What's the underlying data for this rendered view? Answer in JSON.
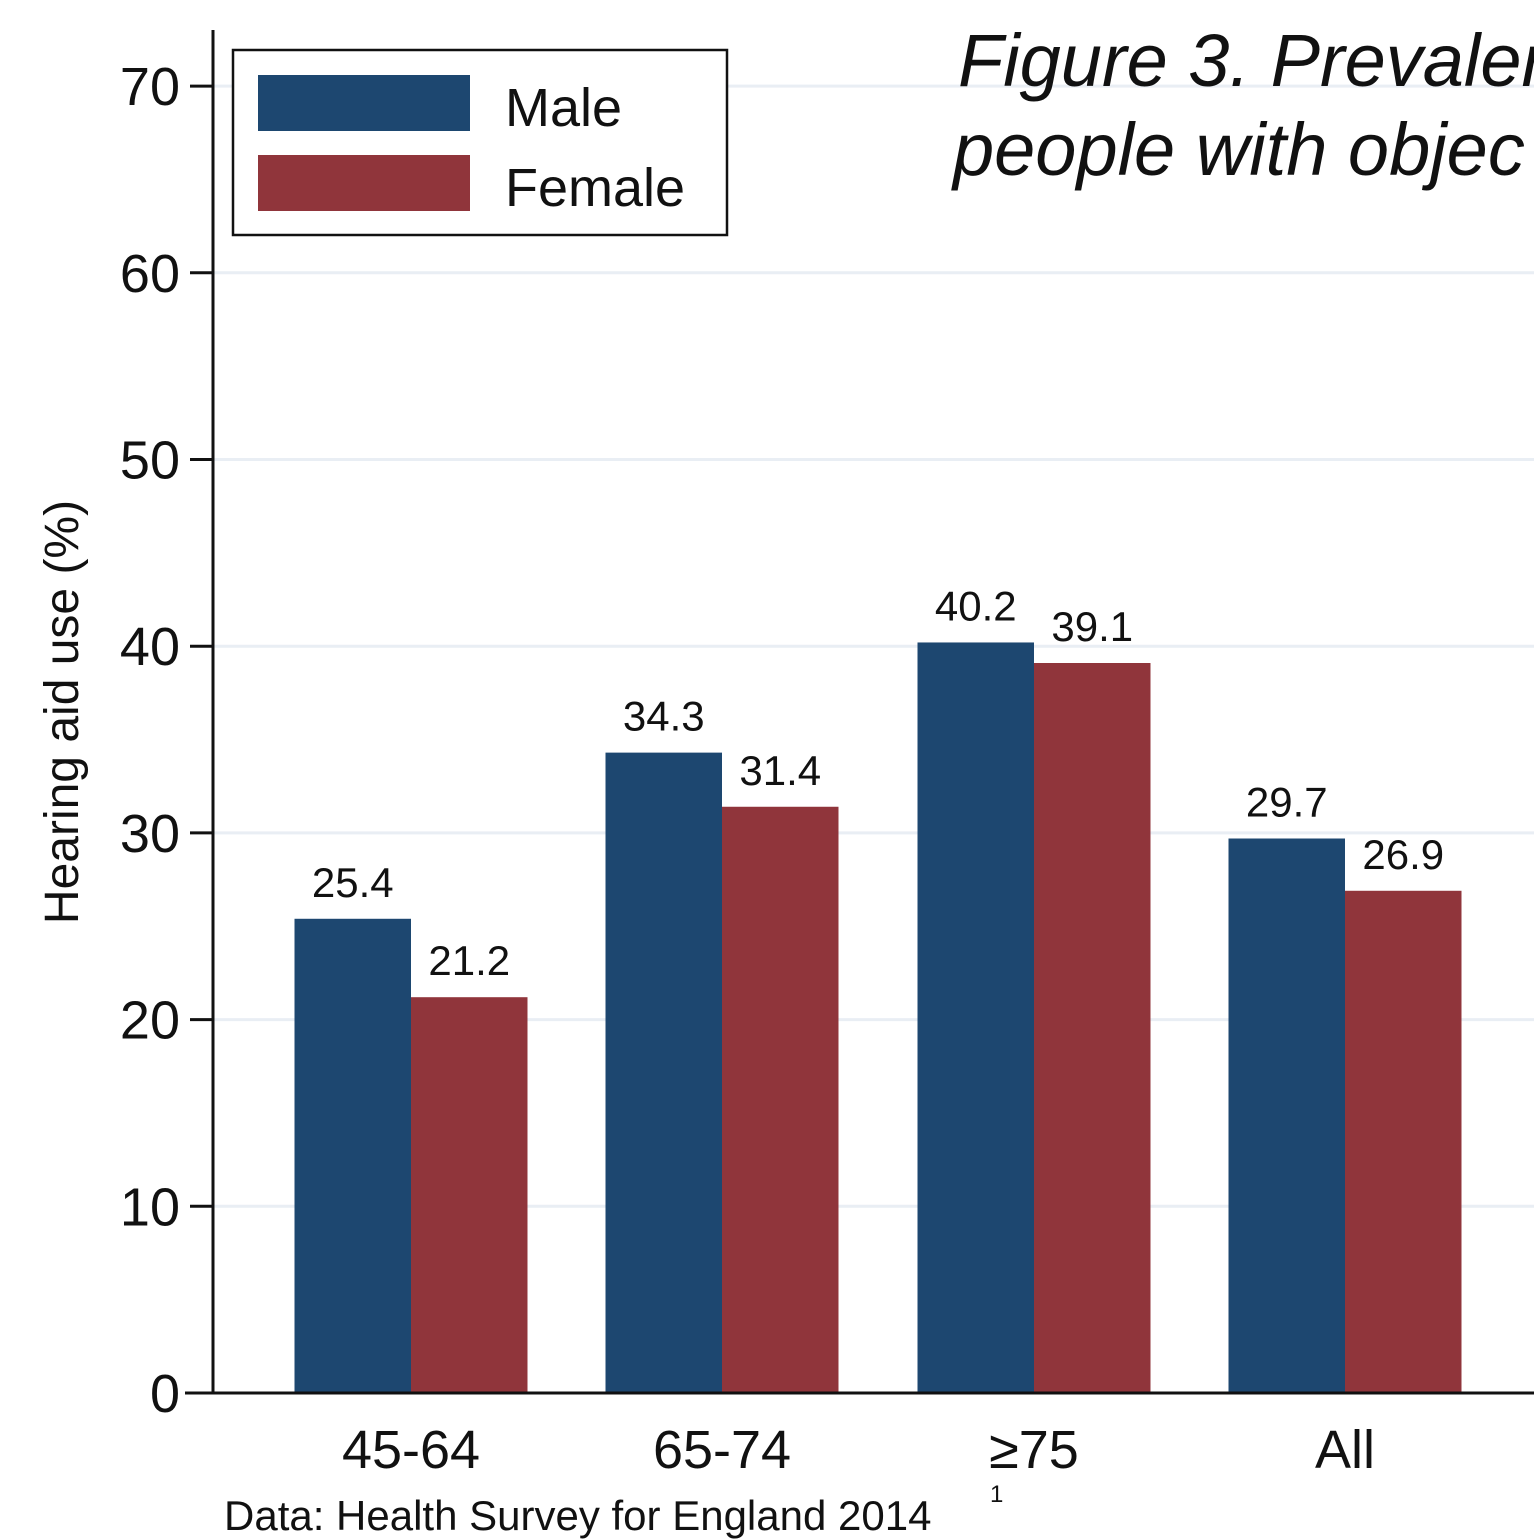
{
  "chart_data": {
    "type": "bar",
    "title_lines": [
      "Figure 3. Prevalen",
      "people with objec"
    ],
    "ylabel": "Hearing aid use (%)",
    "xlabel": "",
    "categories": [
      "45-64",
      "65-74",
      "≥75",
      "All"
    ],
    "series": [
      {
        "name": "Male",
        "color": "#1d4770",
        "values": [
          25.4,
          34.3,
          40.2,
          29.7
        ]
      },
      {
        "name": "Female",
        "color": "#90353b",
        "values": [
          21.2,
          31.4,
          39.1,
          26.9
        ]
      }
    ],
    "data_labels": [
      [
        "25.4",
        "34.3",
        "40.2",
        "29.7"
      ],
      [
        "21.2",
        "31.4",
        "39.1",
        "26.9"
      ]
    ],
    "ylim": [
      0,
      73
    ],
    "yticks": [
      0,
      10,
      20,
      30,
      40,
      50,
      60,
      70
    ],
    "ytick_labels": [
      "0",
      "10",
      "20",
      "30",
      "40",
      "50",
      "60",
      "70"
    ],
    "grid": true,
    "grid_color": "#e9eef4",
    "legend_position": "top-left",
    "source": "Data: Health Survey for England 2014",
    "source_superscript": "1"
  }
}
